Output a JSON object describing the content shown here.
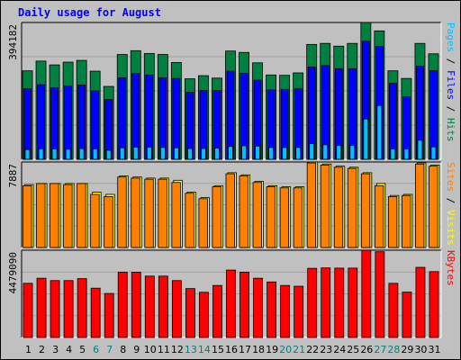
{
  "title": "Daily usage for August",
  "colors": {
    "hits": "#008040",
    "files": "#0000ff",
    "pages": "#00c0ff",
    "sites": "#ff8000",
    "visits": "#ffff00",
    "kbytes": "#ff0000",
    "weekend_label": "#008080",
    "weekday_label": "#000000"
  },
  "chart_data": [
    {
      "type": "bar",
      "panel": "hits-files-pages",
      "max_label": "394182",
      "ylim": [
        0,
        394182
      ],
      "categories": [
        "1",
        "2",
        "3",
        "4",
        "5",
        "6",
        "7",
        "8",
        "9",
        "10",
        "11",
        "12",
        "13",
        "14",
        "15",
        "16",
        "17",
        "18",
        "19",
        "20",
        "21",
        "22",
        "23",
        "24",
        "25",
        "26",
        "27",
        "28",
        "29",
        "30",
        "31"
      ],
      "weekend_days": [
        "6",
        "7",
        "13",
        "14",
        "20",
        "21",
        "27",
        "28"
      ],
      "legend": [
        "Pages",
        "Files",
        "Hits"
      ],
      "series": [
        {
          "name": "Hits",
          "color": "#008040",
          "values": [
            255000,
            283000,
            272000,
            280000,
            285000,
            254000,
            210000,
            302000,
            313000,
            305000,
            302000,
            279000,
            232000,
            241000,
            234000,
            312000,
            308000,
            278000,
            243000,
            242000,
            249000,
            331000,
            334000,
            326000,
            334000,
            394182,
            370000,
            255000,
            233000,
            334000,
            304000
          ]
        },
        {
          "name": "Files",
          "color": "#0000ff",
          "values": [
            203000,
            215000,
            206000,
            211000,
            214000,
            197000,
            172000,
            235000,
            247000,
            243000,
            235000,
            233000,
            193000,
            198000,
            198000,
            254000,
            248000,
            228000,
            200000,
            201000,
            203000,
            266000,
            270000,
            261000,
            261000,
            340000,
            325000,
            219000,
            180000,
            268000,
            255000
          ]
        },
        {
          "name": "Pages",
          "color": "#00c0ff",
          "values": [
            28000,
            30000,
            30000,
            29000,
            31000,
            30000,
            26000,
            33000,
            35000,
            35000,
            34000,
            33000,
            31000,
            31000,
            32000,
            37000,
            39000,
            38000,
            34000,
            34000,
            34000,
            45000,
            42000,
            40000,
            40000,
            116000,
            155000,
            30000,
            30000,
            55000,
            36000
          ]
        }
      ]
    },
    {
      "type": "bar",
      "panel": "sites-visits",
      "max_label": "7887",
      "ylim": [
        0,
        7887
      ],
      "categories": [
        "1",
        "2",
        "3",
        "4",
        "5",
        "6",
        "7",
        "8",
        "9",
        "10",
        "11",
        "12",
        "13",
        "14",
        "15",
        "16",
        "17",
        "18",
        "19",
        "20",
        "21",
        "22",
        "23",
        "24",
        "25",
        "26",
        "27",
        "28",
        "29",
        "30",
        "31"
      ],
      "legend": [
        "Sites",
        "Visits"
      ],
      "series": [
        {
          "name": "Sites",
          "color": "#ff8000",
          "values": [
            5700,
            5900,
            5900,
            5800,
            5900,
            4900,
            4700,
            6500,
            6400,
            6300,
            6300,
            6000,
            5000,
            4500,
            5600,
            6800,
            6600,
            6000,
            5600,
            5500,
            5500,
            7800,
            7600,
            7400,
            7300,
            6800,
            5700,
            4700,
            4800,
            7700,
            7500
          ]
        },
        {
          "name": "Visits",
          "color": "#ffff00",
          "values": [
            5800,
            5900,
            5900,
            5900,
            5900,
            5100,
            4900,
            6600,
            6500,
            6400,
            6400,
            6200,
            5100,
            4600,
            5700,
            6900,
            6700,
            6100,
            5700,
            5600,
            5600,
            7887,
            7700,
            7500,
            7400,
            6900,
            5900,
            4800,
            4900,
            7800,
            7600
          ]
        }
      ]
    },
    {
      "type": "bar",
      "panel": "kbytes",
      "max_label": "4479090",
      "ylim": [
        0,
        4479090
      ],
      "categories": [
        "1",
        "2",
        "3",
        "4",
        "5",
        "6",
        "7",
        "8",
        "9",
        "10",
        "11",
        "12",
        "13",
        "14",
        "15",
        "16",
        "17",
        "18",
        "19",
        "20",
        "21",
        "22",
        "23",
        "24",
        "25",
        "26",
        "27",
        "28",
        "29",
        "30",
        "31"
      ],
      "legend": [
        "KBytes"
      ],
      "series": [
        {
          "name": "KBytes",
          "color": "#ff0000",
          "values": [
            2780000,
            3040000,
            2920000,
            2920000,
            3020000,
            2530000,
            2260000,
            3350000,
            3350000,
            3150000,
            3150000,
            2920000,
            2510000,
            2320000,
            2670000,
            3460000,
            3350000,
            3040000,
            2850000,
            2670000,
            2630000,
            3550000,
            3570000,
            3560000,
            3560000,
            4479090,
            4400000,
            2780000,
            2330000,
            3600000,
            3380000
          ]
        }
      ]
    }
  ]
}
